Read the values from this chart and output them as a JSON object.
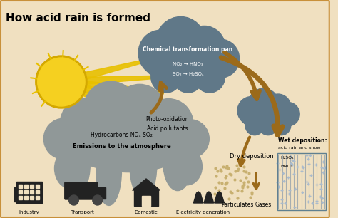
{
  "title": "How acid rain is formed",
  "bg_color": "#f0e0c0",
  "title_color": "#000000",
  "title_fontsize": 11,
  "cloud_dark": "#607888",
  "cloud_light": "#909898",
  "sun_color": "#f5d020",
  "sun_outline": "#d4a800",
  "sun_ray_color": "#e8c000",
  "arrow_color": "#9b6a1a",
  "chemical_text": [
    "Chemical transformation pan",
    "NO₂ → HNO₃",
    "SO₂ → H₂SO₄"
  ],
  "emission_text1": "Hydrocarbons NOₓ SO₂",
  "emission_text2": "Emissions to the atmosphere",
  "photo_text1": "Photo-oxidation",
  "photo_text2": "Acid pollutants",
  "dry_dep_text": "Dry deposition",
  "wet_dep_lines": [
    "Wet deposition:",
    "acid rain and snow",
    "H₂SO₄",
    "HNO₃"
  ],
  "particulates_text": "Particulates",
  "gases_text": "Gases",
  "source_labels": [
    "Industry",
    "Transport",
    "Domestic",
    "Electricity generation"
  ],
  "particulate_color": "#c8b070",
  "rain_line_color": "#8899aa",
  "rain_dot_color": "#aabbcc"
}
